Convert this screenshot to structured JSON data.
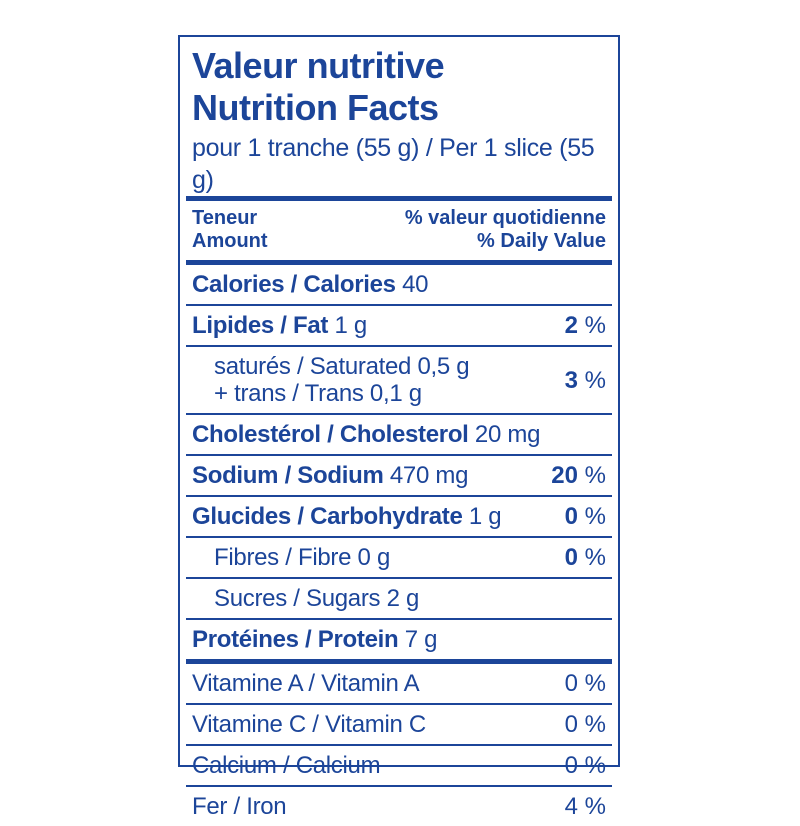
{
  "label": {
    "colors": {
      "blue": "#1c4599",
      "background": "#ffffff"
    },
    "title_fr": "Valeur nutritive",
    "title_en": "Nutrition Facts",
    "serving": "pour 1 tranche (55 g) / Per 1 slice (55 g)",
    "column_header": {
      "left_line1": "Teneur",
      "left_line2": "Amount",
      "right_line1": "% valeur quotidienne",
      "right_line2": "% Daily Value"
    },
    "dv_suffix": " %",
    "rows": [
      {
        "label_bold": "Calories / Calories",
        "label_regular": " 40",
        "lines": [],
        "indent": false,
        "dv_value": "",
        "dv_bold": false,
        "separator_after": "thin"
      },
      {
        "label_bold": "Lipides / Fat",
        "label_regular": " 1 g",
        "lines": [],
        "indent": false,
        "dv_value": "2",
        "dv_bold": true,
        "separator_after": "thin"
      },
      {
        "label_bold": "",
        "label_regular": "",
        "lines": [
          "saturés / Saturated 0,5 g",
          "+ trans / Trans 0,1 g"
        ],
        "indent": true,
        "dv_value": "3",
        "dv_bold": true,
        "separator_after": "thin"
      },
      {
        "label_bold": "Cholestérol / Cholesterol",
        "label_regular": " 20 mg",
        "lines": [],
        "indent": false,
        "dv_value": "",
        "dv_bold": false,
        "separator_after": "thin"
      },
      {
        "label_bold": "Sodium / Sodium",
        "label_regular": " 470 mg",
        "lines": [],
        "indent": false,
        "dv_value": "20",
        "dv_bold": true,
        "separator_after": "thin"
      },
      {
        "label_bold": "Glucides / Carbohydrate",
        "label_regular": " 1 g",
        "lines": [],
        "indent": false,
        "dv_value": "0",
        "dv_bold": true,
        "separator_after": "thin"
      },
      {
        "label_bold": "",
        "label_regular": "Fibres / Fibre 0 g",
        "lines": [],
        "indent": true,
        "dv_value": "0",
        "dv_bold": true,
        "separator_after": "thin"
      },
      {
        "label_bold": "",
        "label_regular": "Sucres / Sugars 2 g",
        "lines": [],
        "indent": true,
        "dv_value": "",
        "dv_bold": false,
        "separator_after": "thin"
      },
      {
        "label_bold": "Protéines / Protein",
        "label_regular": " 7 g",
        "lines": [],
        "indent": false,
        "dv_value": "",
        "dv_bold": false,
        "separator_after": "thick"
      },
      {
        "label_bold": "",
        "label_regular": "Vitamine A / Vitamin A",
        "lines": [],
        "indent": false,
        "dv_value": "0",
        "dv_bold": false,
        "separator_after": "thin"
      },
      {
        "label_bold": "",
        "label_regular": "Vitamine C / Vitamin C",
        "lines": [],
        "indent": false,
        "dv_value": "0",
        "dv_bold": false,
        "separator_after": "thin"
      },
      {
        "label_bold": "",
        "label_regular": "Calcium / Calcium",
        "lines": [],
        "indent": false,
        "dv_value": "0",
        "dv_bold": false,
        "separator_after": "thin"
      },
      {
        "label_bold": "",
        "label_regular": "Fer / Iron",
        "lines": [],
        "indent": false,
        "dv_value": "4",
        "dv_bold": false,
        "separator_after": "none"
      }
    ]
  }
}
